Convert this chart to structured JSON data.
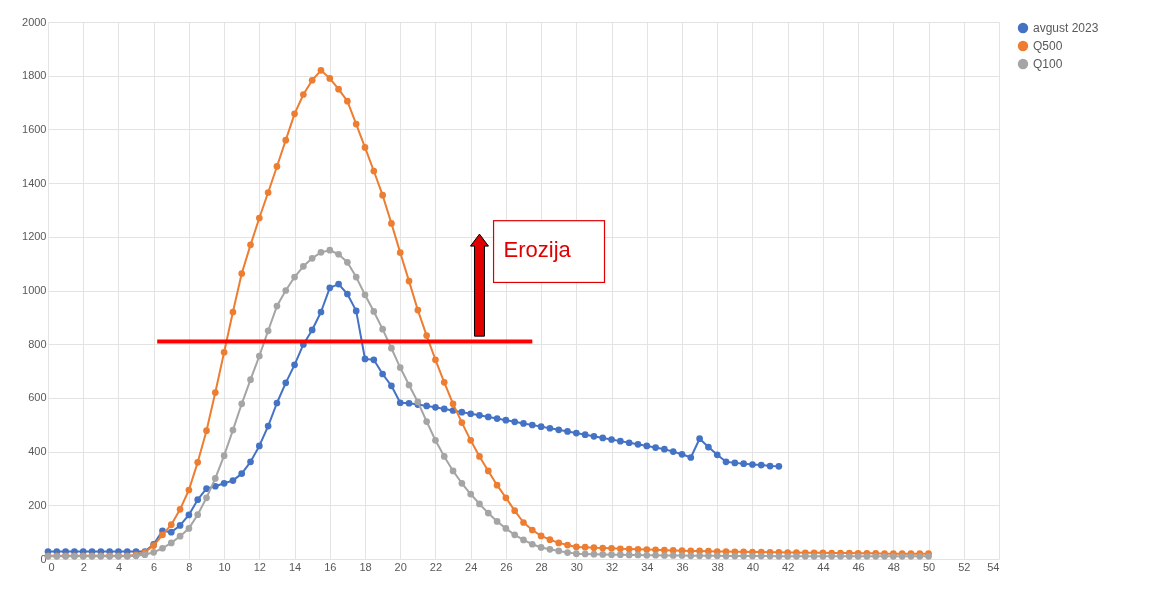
{
  "chart_data": {
    "type": "line",
    "x": [
      0,
      0.5,
      1,
      1.5,
      2,
      2.5,
      3,
      3.5,
      4,
      4.5,
      5,
      5.5,
      6,
      6.5,
      7,
      7.5,
      8,
      8.5,
      9,
      9.5,
      10,
      10.5,
      11,
      11.5,
      12,
      12.5,
      13,
      13.5,
      14,
      14.5,
      15,
      15.5,
      16,
      16.5,
      17,
      17.5,
      18,
      18.5,
      19,
      19.5,
      20,
      20.5,
      21,
      21.5,
      22,
      22.5,
      23,
      23.5,
      24,
      24.5,
      25,
      25.5,
      26,
      26.5,
      27,
      27.5,
      28,
      28.5,
      29,
      29.5,
      30,
      30.5,
      31,
      31.5,
      32,
      32.5,
      33,
      33.5,
      34,
      34.5,
      35,
      35.5,
      36,
      36.5,
      37,
      37.5,
      38,
      38.5,
      39,
      39.5,
      40,
      40.5,
      41,
      41.5,
      42,
      42.5,
      43,
      43.5,
      44,
      44.5,
      45,
      45.5,
      46,
      46.5,
      47,
      47.5,
      48,
      48.5,
      49,
      49.5,
      50
    ],
    "series": [
      {
        "name": "avgust 2023",
        "color": "#4472c4",
        "x": [
          0,
          0.5,
          1,
          1.5,
          2,
          2.5,
          3,
          3.5,
          4,
          4.5,
          5,
          5.5,
          6,
          6.5,
          7,
          7.5,
          8,
          8.5,
          9,
          9.5,
          10,
          10.5,
          11,
          11.5,
          12,
          12.5,
          13,
          13.5,
          14,
          14.5,
          15,
          15.5,
          16,
          16.5,
          17,
          17.5,
          18,
          18.5,
          19,
          19.5,
          20,
          20.5,
          21,
          21.5,
          22,
          22.5,
          23,
          23.5,
          24,
          24.5,
          25,
          25.5,
          26,
          26.5,
          27,
          27.5,
          28,
          28.5,
          29,
          29.5,
          30,
          30.5,
          31,
          31.5,
          32,
          32.5,
          33,
          33.5,
          34,
          34.5,
          35,
          35.5,
          36,
          36.5,
          37,
          37.5,
          38,
          38.5,
          39,
          39.5,
          40,
          40.5,
          41,
          41.5
        ],
        "values": [
          28,
          28,
          28,
          28,
          28,
          28,
          28,
          28,
          28,
          28,
          28,
          28,
          55,
          105,
          100,
          125,
          164,
          221,
          262,
          271,
          282,
          292,
          318,
          362,
          421,
          495,
          581,
          656,
          723,
          799,
          853,
          920,
          1010,
          1024,
          987,
          924,
          745,
          742,
          689,
          645,
          582,
          580,
          575,
          570,
          565,
          559,
          553,
          547,
          541,
          535,
          529,
          523,
          517,
          511,
          505,
          499,
          493,
          487,
          481,
          475,
          469,
          463,
          457,
          451,
          445,
          439,
          433,
          427,
          421,
          415,
          409,
          400,
          390,
          378,
          448,
          417,
          388,
          362,
          358,
          355,
          352,
          350,
          346,
          345
        ]
      },
      {
        "name": "Q500",
        "color": "#ed7d31",
        "values": [
          12,
          12,
          12,
          12,
          12,
          12,
          12,
          12,
          12,
          12,
          15,
          25,
          50,
          90,
          128,
          185,
          257,
          360,
          478,
          620,
          770,
          920,
          1063,
          1170,
          1270,
          1365,
          1462,
          1560,
          1658,
          1730,
          1783,
          1820,
          1790,
          1750,
          1705,
          1620,
          1533,
          1445,
          1355,
          1250,
          1141,
          1035,
          927,
          832,
          742,
          658,
          578,
          508,
          442,
          382,
          328,
          275,
          228,
          180,
          136,
          108,
          86,
          72,
          60,
          52,
          45,
          44,
          42,
          41,
          40,
          38,
          37,
          36,
          35,
          34,
          33,
          32,
          31,
          30,
          30,
          29,
          28,
          28,
          27,
          27,
          26,
          26,
          25,
          25,
          24,
          24,
          23,
          23,
          23,
          22,
          22,
          22,
          21,
          21,
          21,
          20,
          20,
          20,
          20,
          20,
          20
        ]
      },
      {
        "name": "Q100",
        "color": "#a5a5a5",
        "values": [
          10,
          10,
          10,
          10,
          10,
          10,
          10,
          10,
          10,
          10,
          12,
          16,
          25,
          40,
          60,
          85,
          114,
          165,
          228,
          300,
          385,
          480,
          578,
          668,
          756,
          850,
          942,
          1000,
          1050,
          1090,
          1120,
          1142,
          1150,
          1135,
          1105,
          1050,
          984,
          922,
          856,
          785,
          713,
          648,
          585,
          512,
          442,
          382,
          328,
          282,
          242,
          205,
          171,
          140,
          114,
          90,
          71,
          55,
          43,
          36,
          30,
          24,
          20,
          19,
          18,
          17,
          16,
          16,
          15,
          15,
          14,
          14,
          13,
          13,
          13,
          12,
          12,
          12,
          12,
          11,
          11,
          11,
          11,
          11,
          11,
          10,
          10,
          10,
          10,
          10,
          10,
          10,
          10,
          10,
          10,
          10,
          10,
          10,
          10,
          10,
          10,
          10,
          10
        ]
      },
      {
        "type": "line",
        "color": "#ff0000",
        "marker": "none",
        "x": [
          6.2,
          27.5
        ],
        "values": [
          810,
          810
        ]
      }
    ],
    "xlim": [
      0,
      54
    ],
    "xticks": [
      0,
      2,
      4,
      6,
      8,
      10,
      12,
      14,
      16,
      18,
      20,
      22,
      24,
      26,
      28,
      30,
      32,
      34,
      36,
      38,
      40,
      42,
      44,
      46,
      48,
      50,
      52,
      54
    ],
    "ylim": [
      0,
      2000
    ],
    "yticks": [
      0,
      200,
      400,
      600,
      800,
      1000,
      1200,
      1400,
      1600,
      1800,
      2000
    ],
    "grid": true,
    "legend": "right",
    "marker": "circle",
    "line_style": "solid",
    "annotations": [
      "Erozija"
    ]
  }
}
